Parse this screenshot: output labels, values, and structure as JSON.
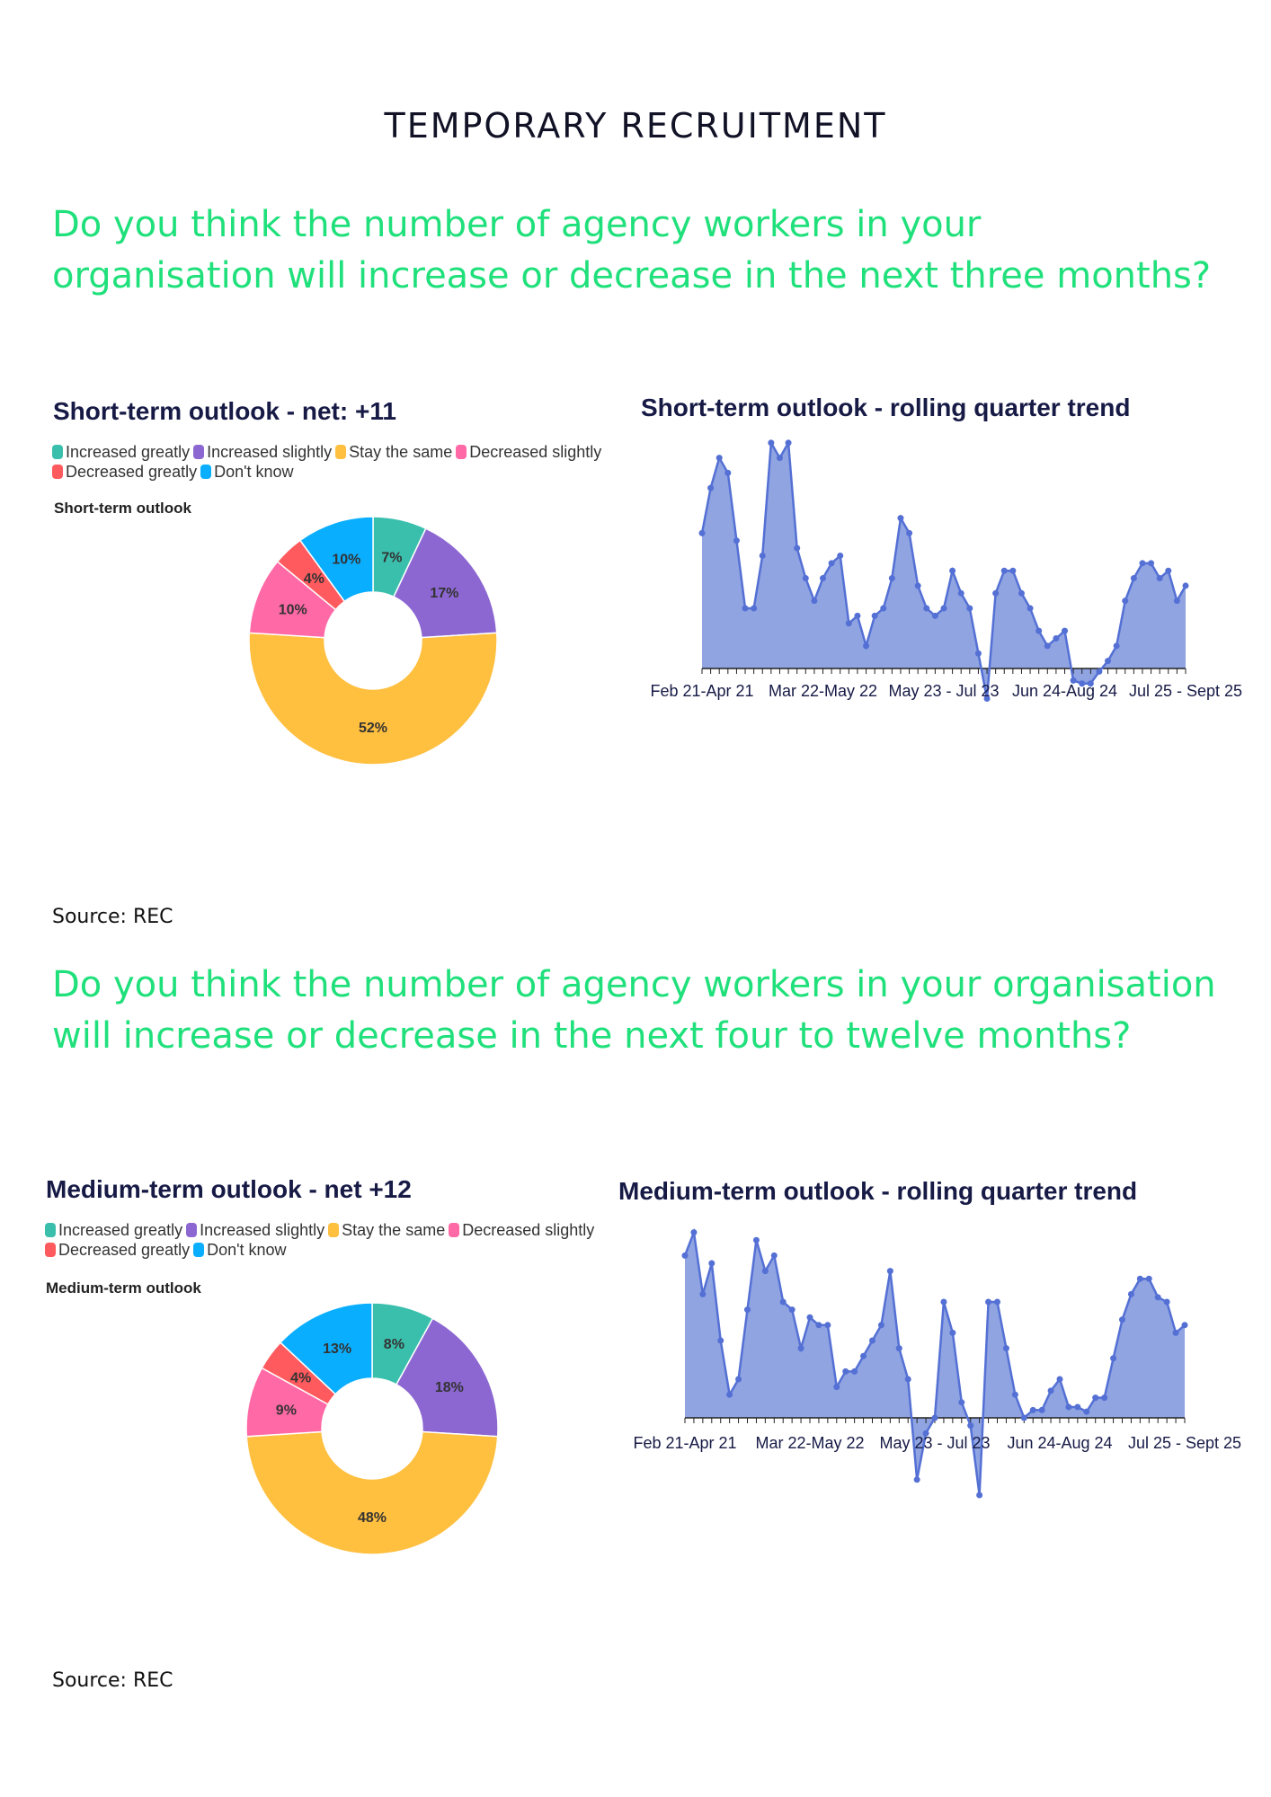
{
  "page_title": "TEMPORARY RECRUITMENT",
  "questions": [
    {
      "line1": "Do you think the number of agency workers in your",
      "line2": "organisation will increase or decrease in the next three months?"
    },
    {
      "line1": "Do you think the number of agency workers in your organisation",
      "line2": "will increase or decrease in the next four to twelve months?"
    }
  ],
  "sources": [
    "Source: REC",
    "Source: REC"
  ],
  "legend": [
    {
      "label": "Increased greatly",
      "color": "#3bbfad"
    },
    {
      "label": "Increased slightly",
      "color": "#8c67d2"
    },
    {
      "label": "Stay the same",
      "color": "#ffbf3f"
    },
    {
      "label": "Decreased slightly",
      "color": "#ff69a6"
    },
    {
      "label": "Decreased greatly",
      "color": "#ff5a5e"
    },
    {
      "label": "Don't know",
      "color": "#0aaeff"
    }
  ],
  "chart_data": [
    {
      "type": "pie",
      "title": "Short-term outlook - net: +11",
      "subtitle": "Short-term outlook",
      "categories": [
        "Increased greatly",
        "Increased slightly",
        "Stay the same",
        "Decreased slightly",
        "Decreased greatly",
        "Don't know"
      ],
      "values": [
        7,
        17,
        52,
        10,
        4,
        10
      ],
      "labels": [
        "7%",
        "17%",
        "52%",
        "10%",
        "4%",
        "10%"
      ]
    },
    {
      "type": "area",
      "title": "Short-term outlook - rolling quarter trend",
      "tick_labels": [
        "Feb 21-Apr 21",
        "Mar 22-May 22",
        "May 23 - Jul 23",
        "Jun 24-Aug 24",
        "Jul 25 - Sept 25"
      ],
      "values": [
        18,
        24,
        28,
        26,
        17,
        8,
        8,
        15,
        30,
        28,
        30,
        16,
        12,
        9,
        12,
        14,
        15,
        6,
        7,
        3,
        7,
        8,
        12,
        20,
        18,
        11,
        8,
        7,
        8,
        13,
        10,
        8,
        2,
        -4,
        10,
        13,
        13,
        10,
        8,
        5,
        3,
        4,
        5,
        -1.6,
        -2,
        -2,
        -0.4,
        1,
        3,
        9,
        12,
        14,
        14,
        12,
        13,
        9,
        11
      ],
      "color": "#5470d4",
      "fill": "#8a9fe0"
    },
    {
      "type": "pie",
      "title": "Medium-term outlook - net +12",
      "subtitle": "Medium-term outlook",
      "categories": [
        "Increased greatly",
        "Increased slightly",
        "Stay the same",
        "Decreased slightly",
        "Decreased greatly",
        "Don't know"
      ],
      "values": [
        8,
        18,
        48,
        9,
        4,
        13
      ],
      "labels": [
        "8%",
        "18%",
        "48%",
        "9%",
        "4%",
        "13%"
      ]
    },
    {
      "type": "area",
      "title": "Medium-term outlook - rolling quarter trend",
      "tick_labels": [
        "Feb 21-Apr 21",
        "Mar 22-May 22",
        "May 23 - Jul 23",
        "Jun 24-Aug 24",
        "Jul 25 - Sept 25"
      ],
      "values": [
        21,
        24,
        16,
        20,
        10,
        3,
        5,
        14,
        23,
        19,
        21,
        15,
        14,
        9,
        13,
        12,
        12,
        4,
        6,
        6,
        8,
        10,
        12,
        19,
        9,
        5,
        -8,
        -2,
        0,
        15,
        11,
        2,
        -1,
        -10,
        15,
        15,
        9,
        3,
        0,
        1,
        1,
        3.5,
        5,
        1.4,
        1.4,
        0.8,
        2.6,
        2.6,
        7.7,
        12.7,
        16,
        18,
        18,
        15.6,
        15,
        11,
        12
      ],
      "color": "#5470d4",
      "fill": "#8a9fe0"
    }
  ]
}
